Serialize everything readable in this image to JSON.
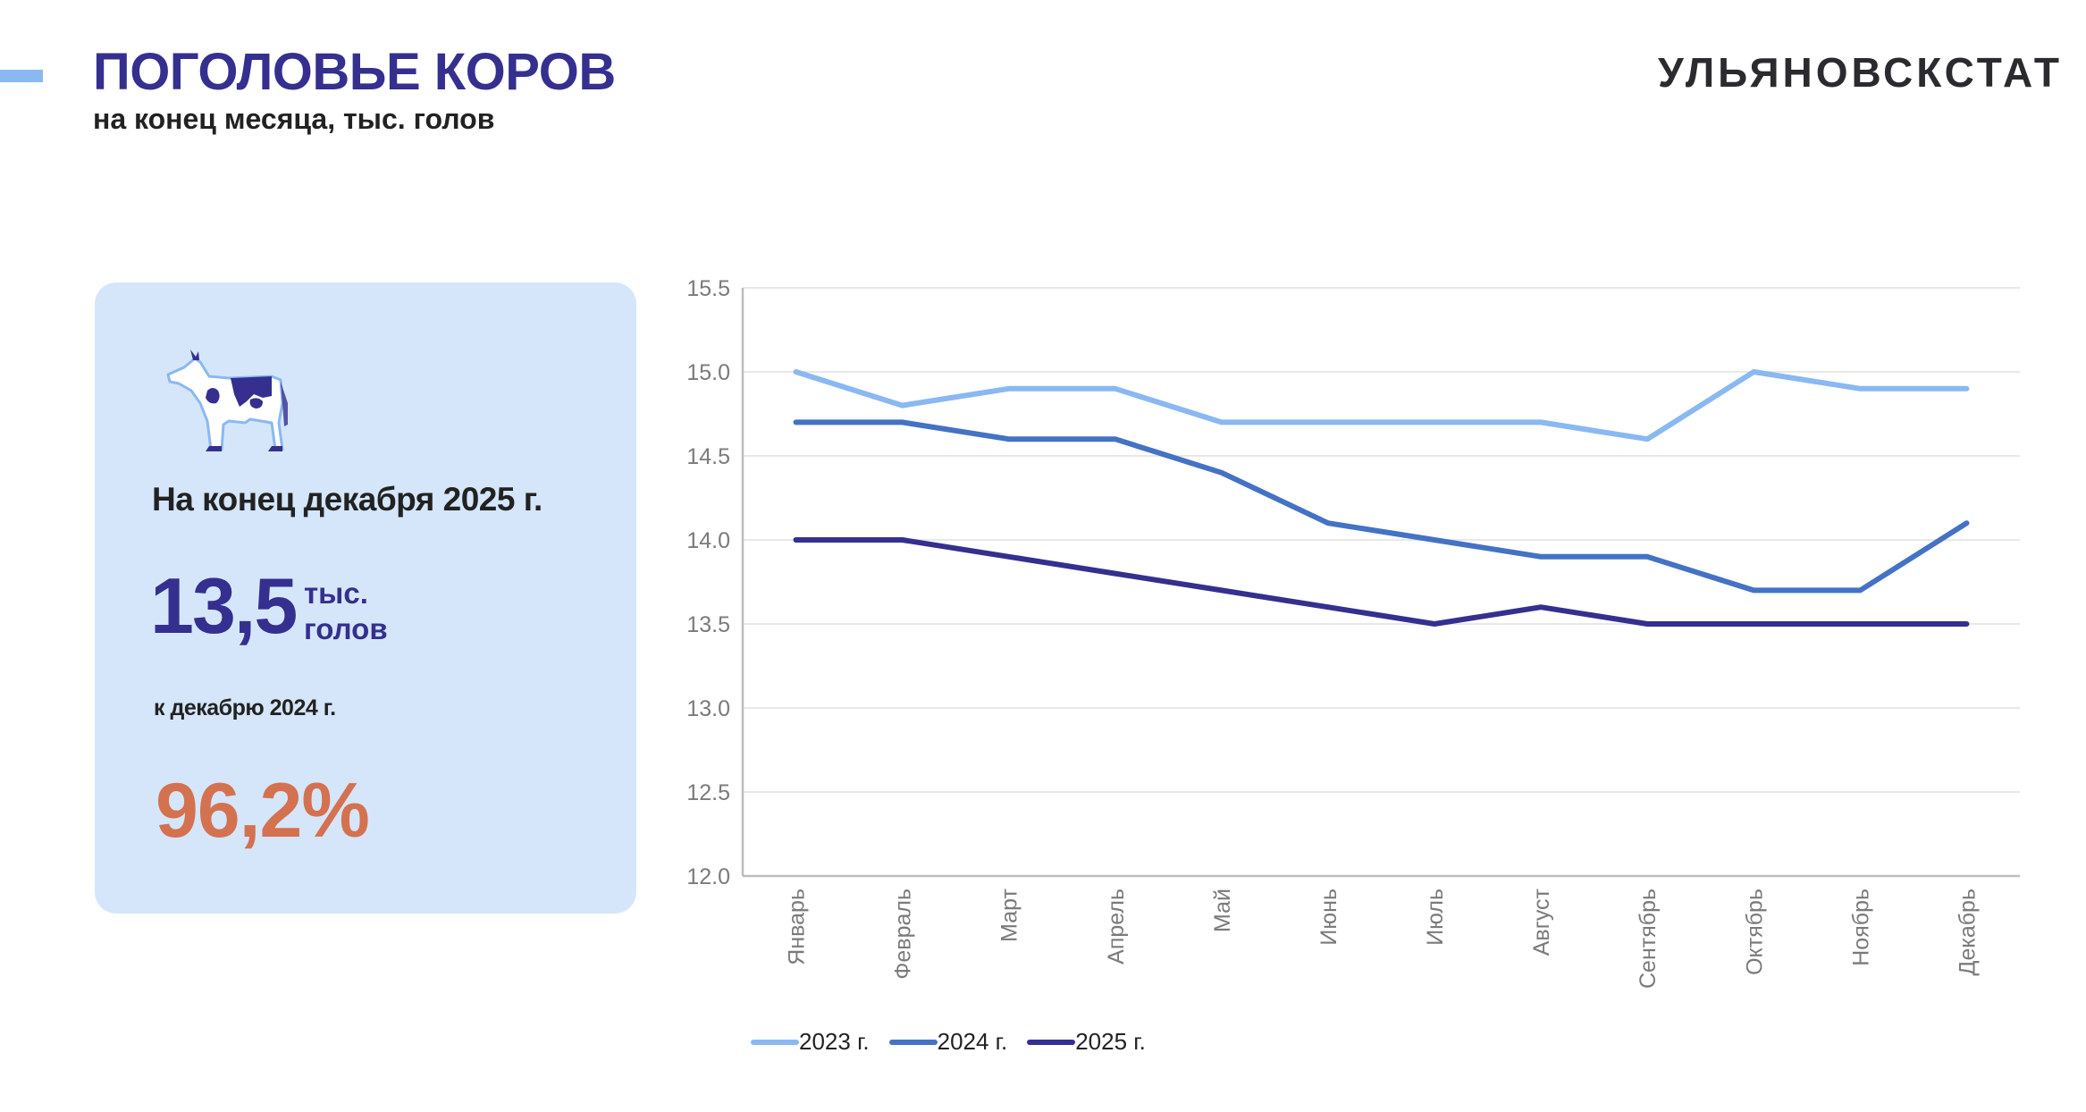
{
  "header": {
    "title": "ПОГОЛОВЬЕ КОРОВ",
    "subtitle": "на конец месяца, тыс. голов",
    "brand": "УЛЬЯНОВСКСТАТ"
  },
  "card": {
    "icon": "cow-icon",
    "period_label": "На конец декабря 2025 г.",
    "value": "13,5",
    "unit_line1": "тыс.",
    "unit_line2": "голов",
    "compare_label": "к декабрю 2024 г.",
    "percent": "96,2%",
    "colors": {
      "value": "#352f8f",
      "percent": "#d4714f",
      "background": "#d5e6fb"
    }
  },
  "chart_data": {
    "type": "line",
    "title": "",
    "xlabel": "",
    "ylabel": "",
    "categories": [
      "Январь",
      "Февраль",
      "Март",
      "Апрель",
      "Май",
      "Июнь",
      "Июль",
      "Август",
      "Сентябрь",
      "Октябрь",
      "Ноябрь",
      "Декабрь"
    ],
    "ylim": [
      12.0,
      15.5
    ],
    "yticks": [
      "12.0",
      "12.5",
      "13.0",
      "13.5",
      "14.0",
      "14.5",
      "15.0",
      "15.5"
    ],
    "grid": true,
    "legend_position": "bottom-left",
    "series": [
      {
        "name": "2023 г.",
        "color": "#8ab8f2",
        "values": [
          15.0,
          14.8,
          14.9,
          14.9,
          14.7,
          14.7,
          14.7,
          14.7,
          14.6,
          15.0,
          14.9,
          14.9
        ]
      },
      {
        "name": "2024 г.",
        "color": "#4472c4",
        "values": [
          14.7,
          14.7,
          14.6,
          14.6,
          14.4,
          14.1,
          14.0,
          13.9,
          13.9,
          13.7,
          13.7,
          14.1
        ]
      },
      {
        "name": "2025 г.",
        "color": "#352f8f",
        "values": [
          14.0,
          14.0,
          13.9,
          13.8,
          13.7,
          13.6,
          13.5,
          13.6,
          13.5,
          13.5,
          13.5,
          13.5
        ]
      }
    ]
  }
}
